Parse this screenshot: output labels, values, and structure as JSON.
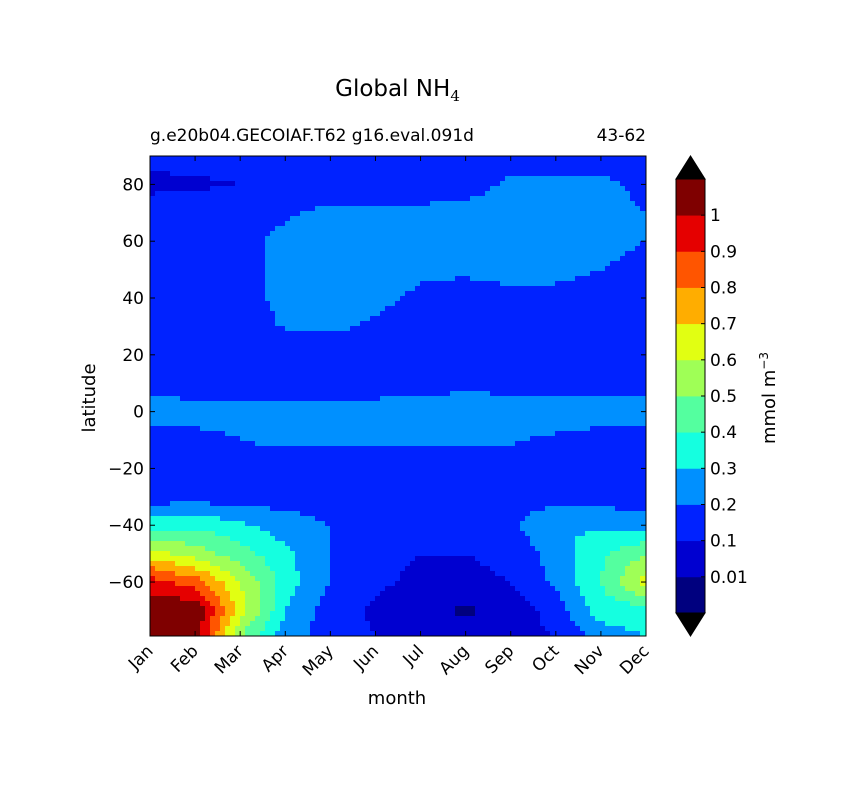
{
  "title": {
    "main": "Global NH",
    "sub": "4"
  },
  "subtitle": {
    "left": "g.e20b04.GECOIAF.T62 g16.eval.091d",
    "right": "43-62"
  },
  "chart_data": {
    "type": "heatmap",
    "title": "Global NH4",
    "xlabel": "month",
    "ylabel": "latitude",
    "x_categories": [
      "Jan",
      "Feb",
      "Mar",
      "Apr",
      "May",
      "Jun",
      "Jul",
      "Aug",
      "Sep",
      "Oct",
      "Nov",
      "Dec"
    ],
    "y_ticks": [
      80,
      60,
      40,
      20,
      0,
      -20,
      -40,
      -60
    ],
    "y_tick_labels": [
      "80",
      "60",
      "40",
      "20",
      "0",
      "−20",
      "−40",
      "−60"
    ],
    "ylim": [
      -79,
      90
    ],
    "colorbar": {
      "label": "mmol m",
      "label_exponent": "−3",
      "levels": [
        0,
        0.01,
        0.1,
        0.2,
        0.3,
        0.4,
        0.5,
        0.6,
        0.7,
        0.8,
        0.9,
        1.0,
        1.1
      ],
      "tick_labels": [
        "0.01",
        "0.1",
        "0.2",
        "0.3",
        "0.4",
        "0.5",
        "0.6",
        "0.7",
        "0.8",
        "0.9",
        "1"
      ],
      "colors": [
        "#00007f",
        "#0000d0",
        "#0022ff",
        "#0090ff",
        "#15ffe0",
        "#54ff9f",
        "#9fff56",
        "#e1ff12",
        "#ffad00",
        "#ff5500",
        "#e50000",
        "#7f0000"
      ],
      "extend": "both",
      "over_color": "#000000",
      "under_color": "#000000"
    },
    "latitudes": [
      90,
      80,
      70,
      60,
      50,
      40,
      30,
      20,
      10,
      0,
      -10,
      -20,
      -30,
      -40,
      -50,
      -60,
      -70,
      -79
    ],
    "values": [
      [
        0.15,
        0.15,
        0.15,
        0.15,
        0.15,
        0.15,
        0.15,
        0.15,
        0.15,
        0.15,
        0.15,
        0.15
      ],
      [
        0.06,
        0.08,
        0.1,
        0.15,
        0.15,
        0.15,
        0.15,
        0.15,
        0.22,
        0.22,
        0.22,
        0.18
      ],
      [
        0.18,
        0.18,
        0.18,
        0.19,
        0.22,
        0.22,
        0.22,
        0.24,
        0.26,
        0.24,
        0.22,
        0.2
      ],
      [
        0.18,
        0.18,
        0.18,
        0.22,
        0.26,
        0.24,
        0.23,
        0.25,
        0.29,
        0.26,
        0.22,
        0.2
      ],
      [
        0.15,
        0.16,
        0.18,
        0.22,
        0.3,
        0.25,
        0.22,
        0.22,
        0.24,
        0.22,
        0.2,
        0.18
      ],
      [
        0.12,
        0.13,
        0.17,
        0.22,
        0.26,
        0.23,
        0.18,
        0.15,
        0.17,
        0.18,
        0.16,
        0.15
      ],
      [
        0.1,
        0.11,
        0.15,
        0.21,
        0.23,
        0.18,
        0.13,
        0.12,
        0.13,
        0.14,
        0.13,
        0.12
      ],
      [
        0.1,
        0.1,
        0.1,
        0.1,
        0.1,
        0.1,
        0.1,
        0.1,
        0.1,
        0.1,
        0.1,
        0.1
      ],
      [
        0.15,
        0.15,
        0.15,
        0.15,
        0.15,
        0.15,
        0.15,
        0.15,
        0.15,
        0.15,
        0.15,
        0.15
      ],
      [
        0.25,
        0.24,
        0.23,
        0.22,
        0.23,
        0.24,
        0.26,
        0.3,
        0.28,
        0.26,
        0.25,
        0.25
      ],
      [
        0.15,
        0.17,
        0.2,
        0.22,
        0.22,
        0.22,
        0.22,
        0.22,
        0.21,
        0.18,
        0.16,
        0.15
      ],
      [
        0.15,
        0.15,
        0.15,
        0.15,
        0.15,
        0.15,
        0.15,
        0.15,
        0.15,
        0.15,
        0.15,
        0.15
      ],
      [
        0.15,
        0.15,
        0.15,
        0.15,
        0.15,
        0.15,
        0.15,
        0.15,
        0.15,
        0.15,
        0.15,
        0.15
      ],
      [
        0.35,
        0.38,
        0.32,
        0.25,
        0.2,
        0.15,
        0.15,
        0.15,
        0.18,
        0.3,
        0.28,
        0.25
      ],
      [
        0.65,
        0.55,
        0.45,
        0.32,
        0.2,
        0.12,
        0.1,
        0.1,
        0.12,
        0.25,
        0.38,
        0.5
      ],
      [
        0.95,
        0.85,
        0.6,
        0.35,
        0.2,
        0.12,
        0.08,
        0.08,
        0.1,
        0.22,
        0.4,
        0.65
      ],
      [
        1.05,
        1.1,
        0.65,
        0.3,
        0.15,
        0.08,
        0.02,
        0.0,
        0.02,
        0.15,
        0.35,
        0.35
      ],
      [
        1.0,
        1.05,
        0.5,
        0.25,
        0.15,
        0.1,
        0.05,
        0.05,
        0.08,
        0.1,
        0.25,
        0.3
      ]
    ]
  }
}
